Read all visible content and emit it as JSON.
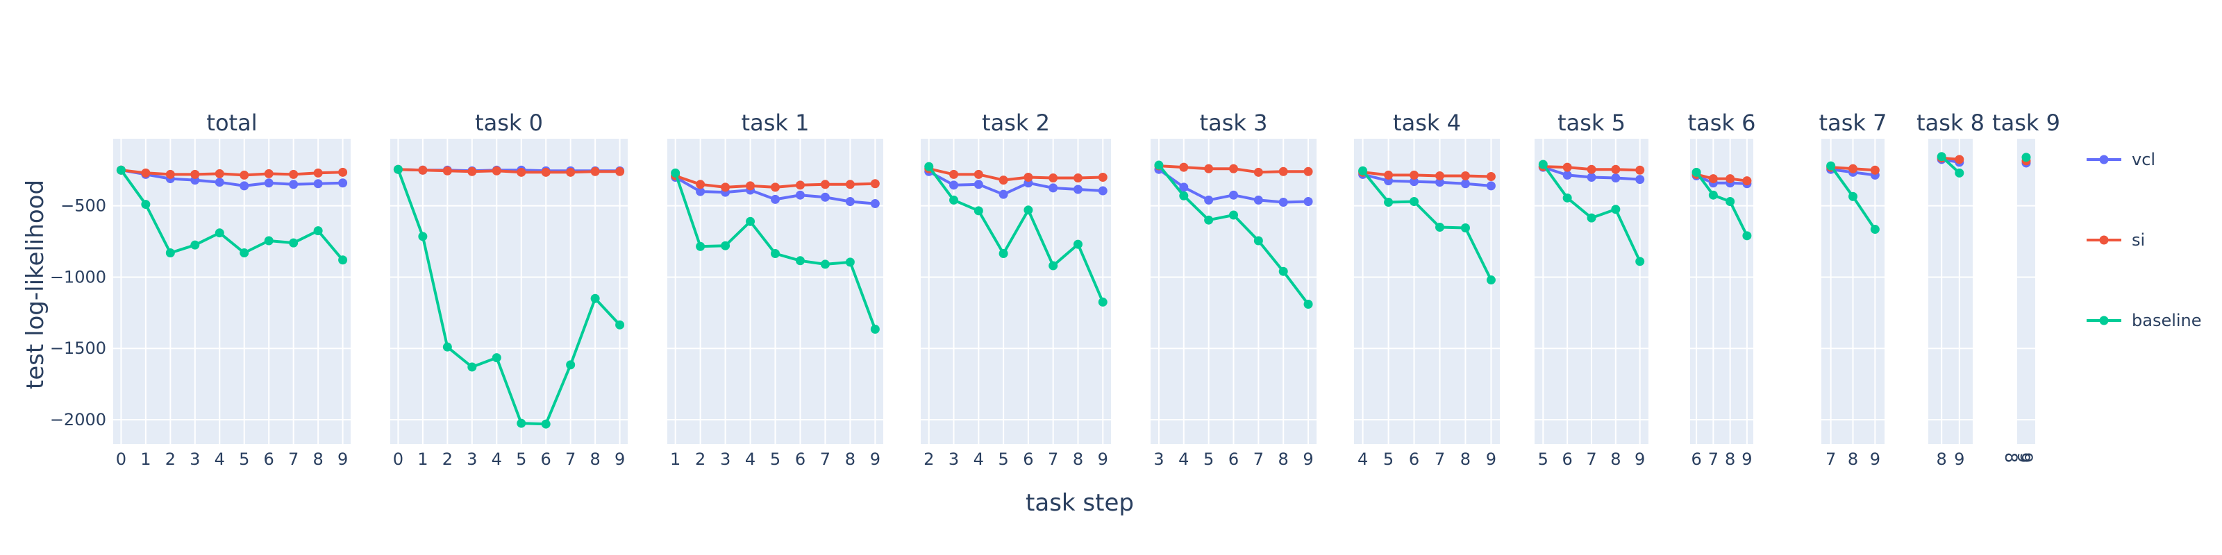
{
  "chart_data": {
    "type": "line",
    "ylabel": "test log-likelihood",
    "xlabel": "task step",
    "ylim": [
      -2170,
      -30
    ],
    "y_ticks": [
      -500,
      -1000,
      -1500,
      -2000
    ],
    "y_tick_labels": [
      "−500",
      "−1000",
      "−1500",
      "−2000"
    ],
    "legend": {
      "position": "right",
      "entries": [
        "vcl",
        "si",
        "baseline"
      ]
    },
    "colors": {
      "vcl": "#636efa",
      "si": "#ef553b",
      "baseline": "#00cc96",
      "plot_bg": "#e5ecf6",
      "grid": "#ffffff",
      "text": "#2a3f5f"
    },
    "panels": [
      {
        "title": "total",
        "x": [
          0,
          1,
          2,
          3,
          4,
          5,
          6,
          7,
          8,
          9
        ],
        "series": [
          {
            "name": "vcl",
            "values": [
              -250,
              -280,
              -310,
              -320,
              -335,
              -360,
              -340,
              -350,
              -345,
              -340
            ]
          },
          {
            "name": "si",
            "values": [
              -250,
              -270,
              -280,
              -280,
              -275,
              -285,
              -275,
              -280,
              -270,
              -265
            ]
          },
          {
            "name": "baseline",
            "values": [
              -250,
              -490,
              -830,
              -775,
              -690,
              -830,
              -745,
              -760,
              -675,
              -880
            ]
          }
        ]
      },
      {
        "title": "task 0",
        "x": [
          0,
          1,
          2,
          3,
          4,
          5,
          6,
          7,
          8,
          9
        ],
        "series": [
          {
            "name": "vcl",
            "values": [
              -245,
              -250,
              -250,
              -255,
              -250,
              -250,
              -255,
              -255,
              -255,
              -255
            ]
          },
          {
            "name": "si",
            "values": [
              -245,
              -250,
              -255,
              -260,
              -255,
              -265,
              -265,
              -265,
              -260,
              -260
            ]
          },
          {
            "name": "baseline",
            "values": [
              -245,
              -715,
              -1490,
              -1630,
              -1565,
              -2025,
              -2030,
              -1615,
              -1150,
              -1335
            ]
          }
        ]
      },
      {
        "title": "task 1",
        "x": [
          1,
          2,
          3,
          4,
          5,
          6,
          7,
          8,
          9
        ],
        "series": [
          {
            "name": "vcl",
            "values": [
              -300,
              -400,
              -405,
              -390,
              -455,
              -425,
              -440,
              -470,
              -485
            ]
          },
          {
            "name": "si",
            "values": [
              -290,
              -350,
              -370,
              -360,
              -370,
              -355,
              -350,
              -350,
              -345
            ]
          },
          {
            "name": "baseline",
            "values": [
              -270,
              -785,
              -780,
              -610,
              -835,
              -885,
              -910,
              -895,
              -1365
            ]
          }
        ]
      },
      {
        "title": "task 2",
        "x": [
          2,
          3,
          4,
          5,
          6,
          7,
          8,
          9
        ],
        "series": [
          {
            "name": "vcl",
            "values": [
              -260,
              -355,
              -350,
              -420,
              -340,
              -375,
              -385,
              -395
            ]
          },
          {
            "name": "si",
            "values": [
              -240,
              -280,
              -280,
              -320,
              -300,
              -305,
              -305,
              -300
            ]
          },
          {
            "name": "baseline",
            "values": [
              -225,
              -460,
              -535,
              -835,
              -530,
              -920,
              -770,
              -1175
            ]
          }
        ]
      },
      {
        "title": "task 3",
        "x": [
          3,
          4,
          5,
          6,
          7,
          8,
          9
        ],
        "series": [
          {
            "name": "vcl",
            "values": [
              -245,
              -370,
              -460,
              -425,
              -460,
              -475,
              -470
            ]
          },
          {
            "name": "si",
            "values": [
              -220,
              -230,
              -240,
              -240,
              -265,
              -260,
              -260
            ]
          },
          {
            "name": "baseline",
            "values": [
              -215,
              -430,
              -600,
              -565,
              -745,
              -960,
              -1190
            ]
          }
        ]
      },
      {
        "title": "task 4",
        "x": [
          4,
          5,
          6,
          7,
          8,
          9
        ],
        "series": [
          {
            "name": "vcl",
            "values": [
              -280,
              -325,
              -330,
              -335,
              -345,
              -360
            ]
          },
          {
            "name": "si",
            "values": [
              -265,
              -285,
              -285,
              -290,
              -290,
              -295
            ]
          },
          {
            "name": "baseline",
            "values": [
              -255,
              -475,
              -470,
              -650,
              -655,
              -1020
            ]
          }
        ]
      },
      {
        "title": "task 5",
        "x": [
          5,
          6,
          7,
          8,
          9
        ],
        "series": [
          {
            "name": "vcl",
            "values": [
              -230,
              -285,
              -300,
              -305,
              -315
            ]
          },
          {
            "name": "si",
            "values": [
              -225,
              -230,
              -245,
              -245,
              -250
            ]
          },
          {
            "name": "baseline",
            "values": [
              -210,
              -445,
              -585,
              -525,
              -890
            ]
          }
        ]
      },
      {
        "title": "task 6",
        "x": [
          6,
          7,
          8,
          9
        ],
        "series": [
          {
            "name": "vcl",
            "values": [
              -290,
              -340,
              -340,
              -345
            ]
          },
          {
            "name": "si",
            "values": [
              -280,
              -310,
              -310,
              -325
            ]
          },
          {
            "name": "baseline",
            "values": [
              -265,
              -425,
              -470,
              -710
            ]
          }
        ]
      },
      {
        "title": "task 7",
        "x": [
          7,
          8,
          9
        ],
        "series": [
          {
            "name": "vcl",
            "values": [
              -245,
              -265,
              -285
            ]
          },
          {
            "name": "si",
            "values": [
              -230,
              -240,
              -250
            ]
          },
          {
            "name": "baseline",
            "values": [
              -220,
              -435,
              -665
            ]
          }
        ]
      },
      {
        "title": "task 8",
        "x": [
          8,
          9
        ],
        "series": [
          {
            "name": "vcl",
            "values": [
              -175,
              -195
            ]
          },
          {
            "name": "si",
            "values": [
              -165,
              -175
            ]
          },
          {
            "name": "baseline",
            "values": [
              -155,
              -270
            ]
          }
        ]
      },
      {
        "title": "task 9",
        "x": [
          9
        ],
        "series": [
          {
            "name": "vcl",
            "values": [
              -200
            ]
          },
          {
            "name": "si",
            "values": [
              -185
            ]
          },
          {
            "name": "baseline",
            "values": [
              -160
            ]
          }
        ]
      }
    ]
  }
}
